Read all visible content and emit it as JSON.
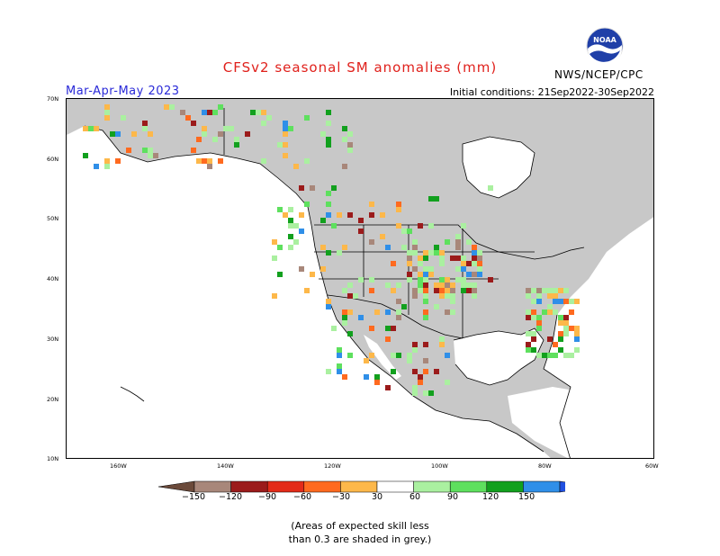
{
  "title": "CFSv2 seasonal SM anomalies (mm)",
  "season": "Mar-Apr-May 2023",
  "agency": "NWS/NCEP/CPC",
  "initial_conditions": "Initial conditions: 21Sep2022-30Sep2022",
  "logo_text": "NOAA",
  "lat_labels": [
    "70N",
    "60N",
    "50N",
    "40N",
    "30N",
    "20N",
    "10N"
  ],
  "lon_labels": [
    "160W",
    "140W",
    "120W",
    "100W",
    "80W",
    "60W"
  ],
  "colorbar": {
    "labels": [
      "−150",
      "−120",
      "−90",
      "−60",
      "−30",
      "30",
      "60",
      "90",
      "120",
      "150"
    ],
    "colors": [
      "#6b4a3a",
      "#a8877a",
      "#9b1b1b",
      "#e32b19",
      "#ff6a1f",
      "#fdb84a",
      "#ffffff",
      "#aaf0a0",
      "#5ee05e",
      "#12a01e",
      "#2f8fe8",
      "#2050e0"
    ]
  },
  "footnote": [
    "(Areas of expected skill less",
    "than 0.3 are shaded in grey.)"
  ],
  "colors": {
    "land_masked": "#c8c8c8",
    "ocean": "#ffffff",
    "title": "#e0211c",
    "season": "#2a2ad8"
  }
}
